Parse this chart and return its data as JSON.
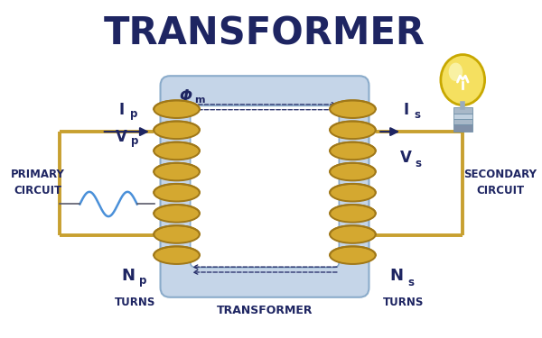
{
  "title": "TRANSFORMER",
  "title_color": "#1e2562",
  "title_fontsize": 30,
  "bg_color": "#ffffff",
  "core_color": "#c5d5e8",
  "core_edge_color": "#8aabca",
  "core_inner_color": "#dde8f0",
  "coil_color": "#d4a830",
  "coil_edge_color": "#a07818",
  "wire_color": "#c8a030",
  "wire_lw": 2.8,
  "arrow_color": "#1e2562",
  "flux_color": "#1e2562",
  "sine_color": "#4a90d9",
  "label_color": "#1e2562",
  "label_primary": "PRIMARY\nCIRCUIT",
  "label_secondary": "SECONDARY\nCIRCUIT",
  "label_transformer": "TRANSFORMER",
  "label_turns": "TURNS",
  "label_flux": "Φ",
  "label_flux_sub": "m",
  "bulb_body_color": "#f5e060",
  "bulb_body_color2": "#faf5b0",
  "bulb_outline_color": "#c8a800",
  "bulb_base_color1": "#8090a8",
  "bulb_base_color2": "#a8b8c8",
  "bulb_base_color3": "#c0d0df",
  "bulb_stem_color": "#9aacbe"
}
